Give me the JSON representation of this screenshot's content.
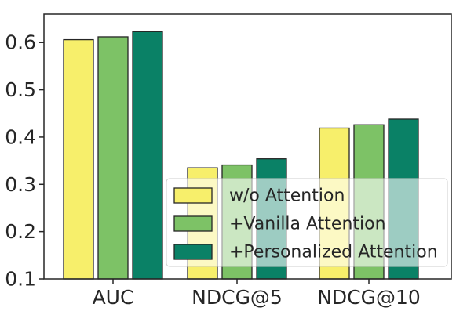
{
  "chart_data": {
    "type": "bar",
    "title": "",
    "xlabel": "",
    "ylabel": "",
    "categories": [
      "AUC",
      "NDCG@5",
      "NDCG@10"
    ],
    "series": [
      {
        "name": "w/o Attention",
        "color": "#f7ef6b",
        "values": [
          0.606,
          0.335,
          0.419
        ]
      },
      {
        "name": "+Vanilla Attention",
        "color": "#7dc266",
        "values": [
          0.612,
          0.341,
          0.426
        ]
      },
      {
        "name": "+Personalized Attention",
        "color": "#0a8166",
        "values": [
          0.623,
          0.354,
          0.438
        ]
      }
    ],
    "ylim": [
      0.1,
      0.66
    ],
    "yticks": [
      0.1,
      0.2,
      0.3,
      0.4,
      0.5,
      0.6
    ],
    "ytick_labels": [
      "0.1",
      "0.2",
      "0.3",
      "0.4",
      "0.5",
      "0.6"
    ],
    "grid": false,
    "legend_position": "lower-right"
  }
}
